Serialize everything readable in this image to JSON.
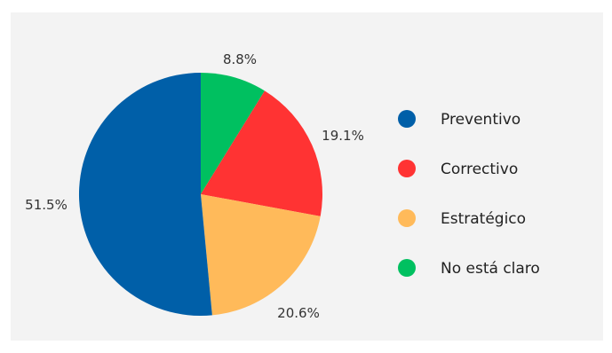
{
  "chart_data": {
    "type": "pie",
    "series": [
      {
        "name": "Preventivo",
        "value": 51.5,
        "label": "51.5%",
        "color": "#005fa8"
      },
      {
        "name": "Correctivo",
        "value": 19.1,
        "label": "19.1%",
        "color": "#ff3333"
      },
      {
        "name": "Estratégico",
        "value": 20.6,
        "label": "20.6%",
        "color": "#ffba5a"
      },
      {
        "name": "No está claro",
        "value": 8.8,
        "label": "8.8%",
        "color": "#00c060"
      }
    ],
    "order_clockwise_from_top": [
      "No está claro",
      "Correctivo",
      "Estratégico",
      "Preventivo"
    ],
    "legend_position": "right",
    "background_color": "#f3f3f3"
  }
}
